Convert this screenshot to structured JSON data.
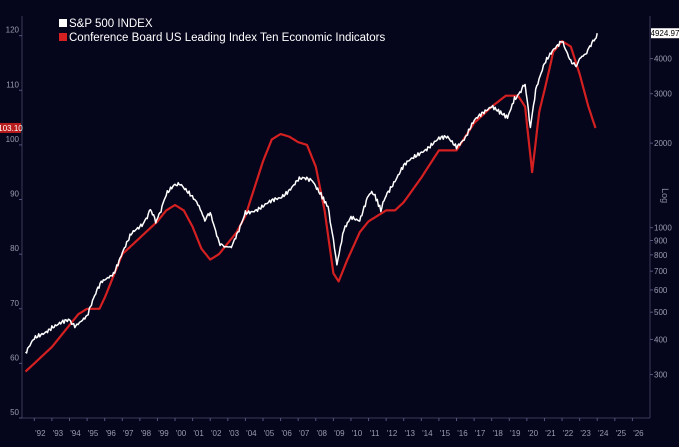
{
  "chart_data": {
    "type": "line",
    "title": "",
    "log_scale_label": "Log",
    "legend_position": "top-left",
    "grid": false,
    "background": "#05051c",
    "x_ticks": [
      "'92",
      "'93",
      "'94",
      "'95",
      "'96",
      "'97",
      "'98",
      "'99",
      "'00",
      "'01",
      "'02",
      "'03",
      "'04",
      "'05",
      "'06",
      "'07",
      "'08",
      "'09",
      "'10",
      "'11",
      "'12",
      "'13",
      "'14",
      "'15",
      "'16",
      "'17",
      "'18",
      "'19",
      "'20",
      "'21",
      "'22",
      "'23",
      "'24",
      "'25",
      "'26"
    ],
    "xlim": [
      1991.3,
      2027.0
    ],
    "left_axis": {
      "ticks": [
        "50",
        "60",
        "70",
        "80",
        "90",
        "100",
        "110",
        "120"
      ],
      "ylim": [
        50,
        122.5
      ]
    },
    "right_axis": {
      "ticks": [
        "300",
        "400",
        "500",
        "600",
        "700",
        "800",
        "900",
        "1000",
        "2000",
        "3000",
        "4000"
      ],
      "log": true,
      "ylim": [
        210,
        5400
      ]
    },
    "last_values": {
      "leading_index": {
        "label": "103.10",
        "value": 103.1,
        "color": "#ff4a4a",
        "bg": "#b81c1c"
      },
      "spx": {
        "label": "4924.97",
        "value": 4924.97,
        "color": "#ffffff",
        "bg": "#ffffff"
      }
    },
    "series": [
      {
        "name": "S&P 500 INDEX",
        "axis": "right",
        "color": "#ffffff",
        "x": [
          1991.5,
          1992.0,
          1993.0,
          1994.0,
          1994.3,
          1995.0,
          1995.8,
          1996.5,
          1997.0,
          1997.5,
          1998.0,
          1998.6,
          1998.9,
          1999.5,
          2000.0,
          2000.3,
          2000.8,
          2001.3,
          2001.7,
          2002.0,
          2002.5,
          2002.8,
          2003.2,
          2003.7,
          2004.0,
          2005.0,
          2006.0,
          2007.0,
          2007.8,
          2008.3,
          2008.7,
          2009.0,
          2009.2,
          2009.6,
          2010.0,
          2010.5,
          2011.0,
          2011.3,
          2011.7,
          2012.0,
          2013.0,
          2014.0,
          2015.0,
          2015.5,
          2016.0,
          2016.5,
          2017.0,
          2018.0,
          2018.9,
          2019.3,
          2019.9,
          2020.2,
          2020.5,
          2021.0,
          2021.5,
          2022.0,
          2022.5,
          2022.8,
          2023.0,
          2023.4,
          2024.0
        ],
        "y": [
          355,
          400,
          445,
          465,
          450,
          490,
          640,
          690,
          820,
          940,
          1000,
          1150,
          1050,
          1300,
          1420,
          1450,
          1320,
          1200,
          1050,
          1130,
          900,
          850,
          860,
          990,
          1130,
          1190,
          1280,
          1480,
          1490,
          1320,
          1200,
          900,
          740,
          1000,
          1100,
          1070,
          1300,
          1320,
          1140,
          1320,
          1650,
          1870,
          2060,
          2090,
          1960,
          2100,
          2380,
          2740,
          2500,
          2900,
          3200,
          2300,
          3100,
          3800,
          4300,
          4700,
          3900,
          3700,
          3950,
          4150,
          4925
        ]
      },
      {
        "name": "Conference Board US Leading Index Ten Economic Indicators",
        "axis": "left",
        "color": "#d42020",
        "x": [
          1991.5,
          1992.0,
          1993.0,
          1994.0,
          1994.5,
          1995.0,
          1995.7,
          1996.0,
          1997.0,
          1998.0,
          1999.0,
          1999.5,
          2000.0,
          2000.5,
          2001.0,
          2001.5,
          2002.0,
          2002.5,
          2003.0,
          2003.5,
          2004.0,
          2004.5,
          2005.0,
          2005.5,
          2006.0,
          2006.5,
          2007.0,
          2007.5,
          2008.0,
          2008.5,
          2009.0,
          2009.3,
          2009.8,
          2010.5,
          2011.0,
          2012.0,
          2012.5,
          2013.0,
          2014.0,
          2015.0,
          2016.0,
          2017.0,
          2018.0,
          2018.8,
          2019.5,
          2019.9,
          2020.3,
          2020.7,
          2021.0,
          2021.5,
          2022.0,
          2022.5,
          2023.0,
          2023.5,
          2023.9
        ],
        "y": [
          58.5,
          60,
          63,
          67,
          69,
          70,
          70,
          72,
          80,
          83,
          86,
          88,
          89,
          88,
          85,
          81,
          79,
          80,
          82,
          84,
          87,
          92,
          97,
          101,
          102,
          101.5,
          100.5,
          100,
          96,
          88,
          76.5,
          75,
          79,
          84,
          86,
          88,
          88,
          89.5,
          94,
          99,
          99,
          104,
          107,
          109,
          109,
          107,
          95,
          106,
          110,
          117,
          119,
          118,
          113,
          107,
          103.1
        ]
      }
    ]
  }
}
